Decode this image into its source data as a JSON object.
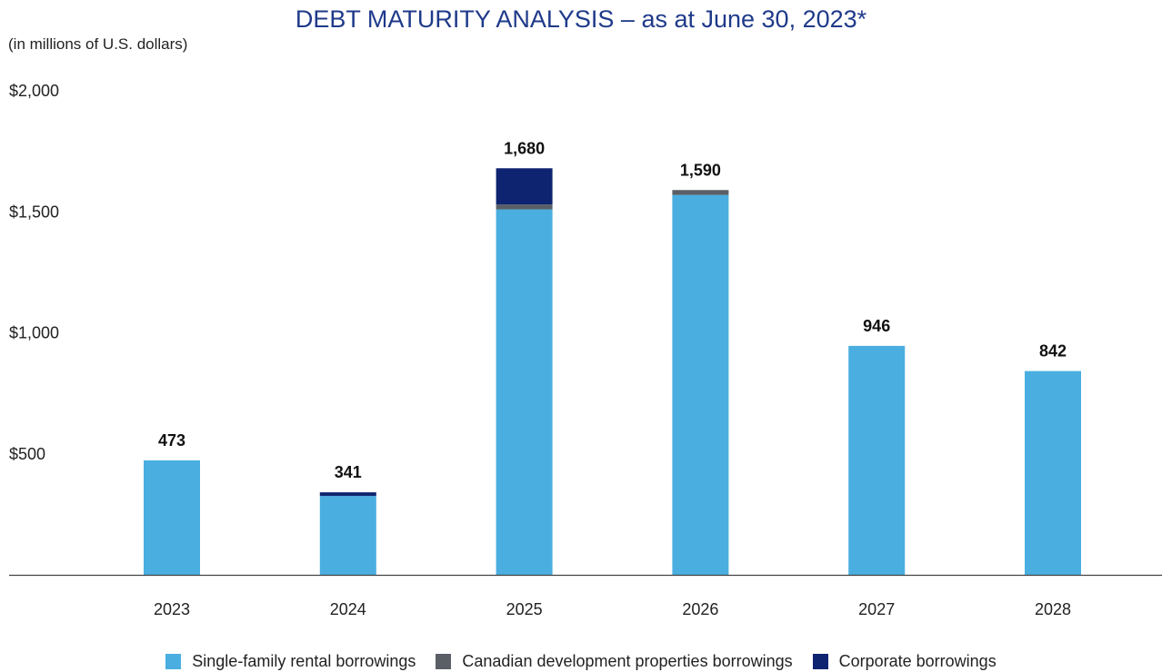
{
  "chart_data": {
    "type": "bar",
    "stacked": true,
    "title": "DEBT MATURITY ANALYSIS – as at June 30, 2023*",
    "units_note": "(in millions of U.S. dollars)",
    "categories": [
      "2023",
      "2024",
      "2025",
      "2026",
      "2027",
      "2028"
    ],
    "series": [
      {
        "name": "Single-family rental borrowings",
        "color": "#4aaee0",
        "values": [
          473,
          326,
          1510,
          1570,
          946,
          842
        ]
      },
      {
        "name": "Canadian development properties borrowings",
        "color": "#5a5f66",
        "values": [
          0,
          0,
          20,
          20,
          0,
          0
        ]
      },
      {
        "name": "Corporate borrowings",
        "color": "#0f2470",
        "values": [
          0,
          15,
          150,
          0,
          0,
          0
        ]
      }
    ],
    "totals": [
      473,
      341,
      1680,
      1590,
      946,
      842
    ],
    "total_labels": [
      "473",
      "341",
      "1,680",
      "1,590",
      "946",
      "842"
    ],
    "yticks": [
      500,
      1000,
      1500,
      2000
    ],
    "ytick_labels": [
      "$500",
      "$1,000",
      "$1,500",
      "$2,000"
    ],
    "ylim": [
      0,
      2000
    ],
    "grid": false,
    "legend_position": "bottom"
  }
}
